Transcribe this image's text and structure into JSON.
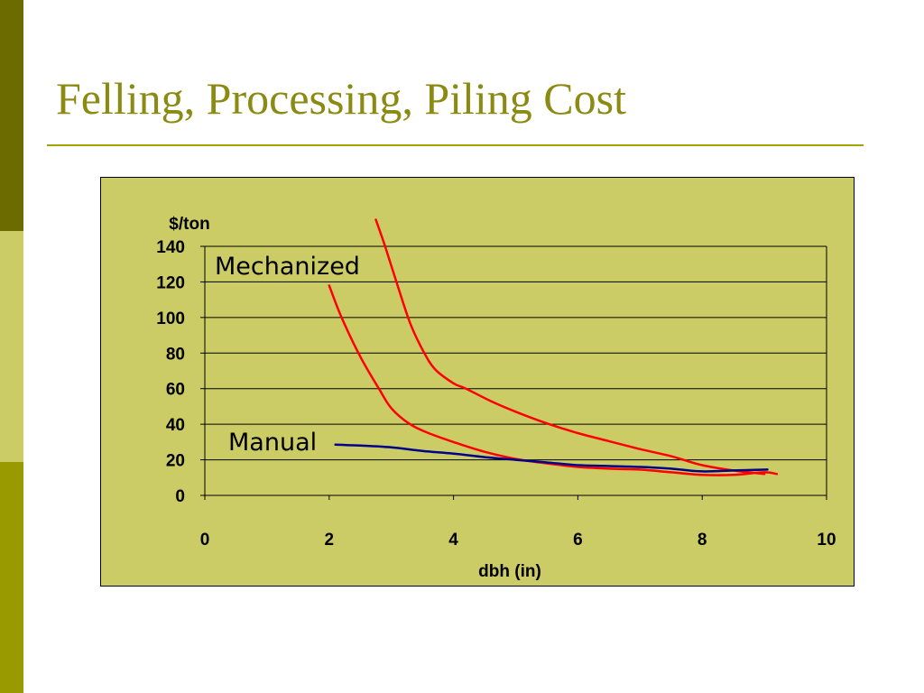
{
  "slide": {
    "title": "Felling, Processing, Piling Cost"
  },
  "colors": {
    "title": "#8b8b14",
    "rule": "#a3a300",
    "chart_background": "#cccc66",
    "mechanized_series": "#ff0000",
    "manual_series": "#00008b"
  },
  "chart_data": {
    "type": "line",
    "xlabel": "dbh (in)",
    "ylabel": "$/ton",
    "xlim": [
      0,
      10
    ],
    "ylim": [
      0,
      140
    ],
    "xticks": [
      0,
      2,
      4,
      6,
      8,
      10
    ],
    "yticks": [
      0,
      20,
      40,
      60,
      80,
      100,
      120,
      140
    ],
    "grid": "horizontal",
    "annotations": [
      "Mechanized",
      "Manual"
    ],
    "series": [
      {
        "group": "Mechanized",
        "color": "#ff0000",
        "x": [
          2.0,
          2.2,
          2.5,
          2.8,
          3.0,
          3.3,
          3.6,
          4.0,
          4.5,
          5.0,
          5.5,
          6.0,
          6.5,
          7.0,
          7.5,
          8.0,
          8.5,
          9.0,
          9.2
        ],
        "y": [
          118,
          100,
          78,
          60,
          49,
          40,
          35,
          30,
          24.5,
          20.5,
          18,
          16,
          15,
          14.5,
          13,
          11.5,
          11.5,
          13,
          12
        ]
      },
      {
        "group": "Mechanized",
        "color": "#ff0000",
        "x": [
          2.75,
          2.9,
          3.1,
          3.3,
          3.5,
          3.7,
          4.0,
          4.2,
          4.6,
          5.0,
          5.5,
          6.0,
          6.5,
          7.0,
          7.5,
          8.0,
          8.5,
          9.0
        ],
        "y": [
          155,
          140,
          118,
          97,
          82,
          71,
          63,
          60,
          53,
          47,
          40.5,
          35,
          30.5,
          26,
          22,
          17,
          14,
          12
        ]
      },
      {
        "group": "Manual",
        "color": "#00008b",
        "x": [
          2.1,
          2.5,
          3.0,
          3.5,
          4.0,
          4.5,
          5.0,
          5.5,
          6.0,
          6.5,
          7.0,
          7.5,
          8.0,
          8.5,
          9.05
        ],
        "y": [
          28.5,
          28,
          27,
          25,
          23.5,
          21.5,
          20,
          18.5,
          17,
          16.5,
          16,
          15,
          13.5,
          14,
          14.5
        ]
      }
    ]
  }
}
